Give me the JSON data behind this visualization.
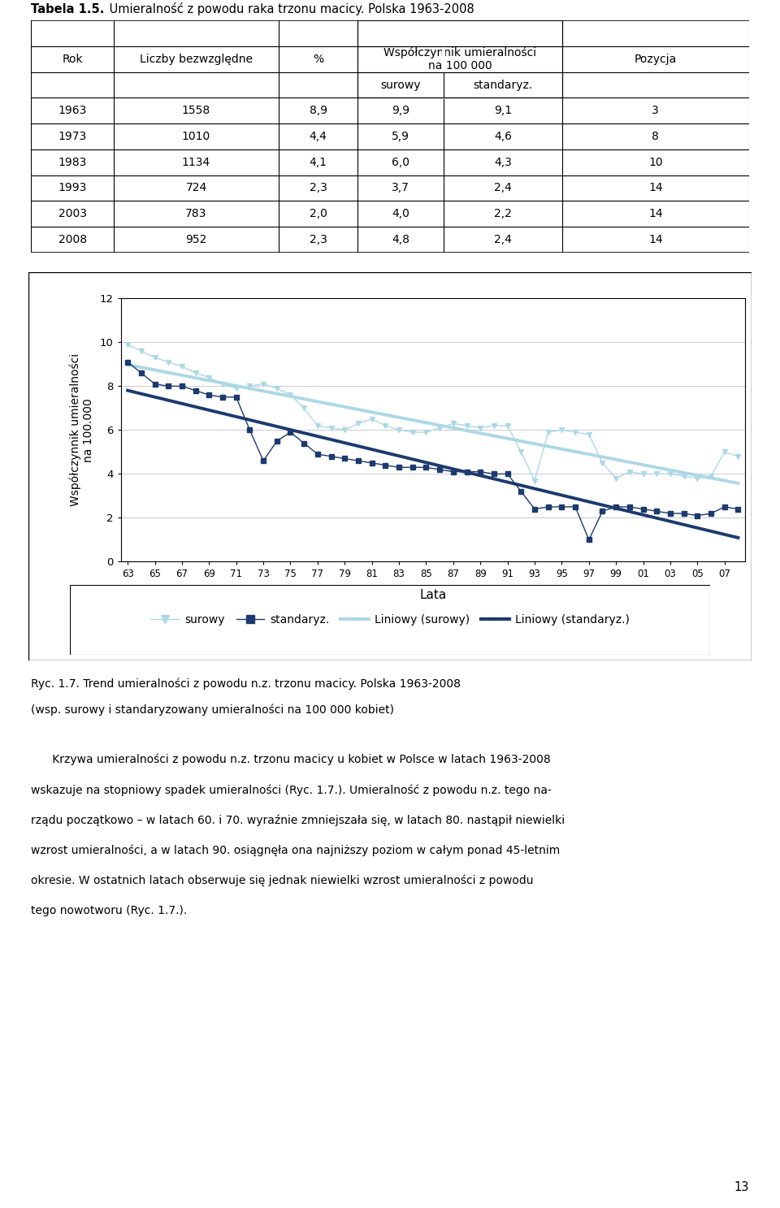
{
  "table_title_bold": "Tabela 1.5.",
  "table_title_rest": " Umieralność z powodu raka trzonu macicy. Polska 1963-2008",
  "table_data": [
    [
      "1963",
      "1558",
      "8,9",
      "9,9",
      "9,1",
      "3"
    ],
    [
      "1973",
      "1010",
      "4,4",
      "5,9",
      "4,6",
      "8"
    ],
    [
      "1983",
      "1134",
      "4,1",
      "6,0",
      "4,3",
      "10"
    ],
    [
      "1993",
      "724",
      "2,3",
      "3,7",
      "2,4",
      "14"
    ],
    [
      "2003",
      "783",
      "2,0",
      "4,0",
      "2,2",
      "14"
    ],
    [
      "2008",
      "952",
      "2,3",
      "4,8",
      "2,4",
      "14"
    ]
  ],
  "years_surowy": [
    1963,
    1964,
    1965,
    1966,
    1967,
    1968,
    1969,
    1970,
    1971,
    1972,
    1973,
    1974,
    1975,
    1976,
    1977,
    1978,
    1979,
    1980,
    1981,
    1982,
    1983,
    1984,
    1985,
    1986,
    1987,
    1988,
    1989,
    1990,
    1991,
    1992,
    1993,
    1994,
    1995,
    1996,
    1997,
    1998,
    1999,
    2000,
    2001,
    2002,
    2003,
    2004,
    2005,
    2006,
    2007,
    2008
  ],
  "surowy": [
    9.9,
    9.6,
    9.3,
    9.1,
    8.9,
    8.6,
    8.4,
    8.1,
    7.9,
    8.0,
    8.1,
    7.9,
    7.6,
    7.0,
    6.2,
    6.1,
    6.0,
    6.3,
    6.5,
    6.2,
    6.0,
    5.9,
    5.9,
    6.1,
    6.3,
    6.2,
    6.1,
    6.2,
    6.2,
    5.0,
    3.7,
    5.9,
    6.0,
    5.9,
    5.8,
    4.5,
    3.8,
    4.1,
    4.0,
    4.0,
    4.0,
    3.9,
    3.8,
    3.9,
    5.0,
    4.8
  ],
  "standaryz": [
    9.1,
    8.6,
    8.1,
    8.0,
    8.0,
    7.8,
    7.6,
    7.5,
    7.5,
    6.0,
    4.6,
    5.5,
    5.9,
    5.4,
    4.9,
    4.8,
    4.7,
    4.6,
    4.5,
    4.4,
    4.3,
    4.3,
    4.3,
    4.2,
    4.1,
    4.1,
    4.1,
    4.0,
    4.0,
    3.2,
    2.4,
    2.5,
    2.5,
    2.5,
    1.0,
    2.3,
    2.5,
    2.5,
    2.4,
    2.3,
    2.2,
    2.2,
    2.1,
    2.2,
    2.5,
    2.4
  ],
  "x_tick_labels": [
    "63",
    "65",
    "67",
    "69",
    "71",
    "73",
    "75",
    "77",
    "79",
    "81",
    "83",
    "85",
    "87",
    "89",
    "91",
    "93",
    "95",
    "97",
    "99",
    "01",
    "03",
    "05",
    "07"
  ],
  "x_tick_positions": [
    0,
    2,
    4,
    6,
    8,
    10,
    12,
    14,
    16,
    18,
    20,
    22,
    24,
    26,
    28,
    30,
    32,
    34,
    36,
    38,
    40,
    42,
    44
  ],
  "ylabel": "Współczynnik umieralności\nna 100.000",
  "xlabel": "Lata",
  "ylim": [
    0,
    12
  ],
  "yticks": [
    0,
    2,
    4,
    6,
    8,
    10,
    12
  ],
  "surowy_color": "#ADD8E6",
  "standaryz_color": "#1C3A6E",
  "caption_line1": "Ryc. 1.7. Trend umieralności z powodu n.z. trzonu macicy. Polska 1963-2008",
  "caption_line2": "(wsp. surowy i standaryzowany umieralności na 100 000 kobiet)",
  "para_lines": [
    "      Krzywa umieralności z powodu n.z. trzonu macicy u kobiet w Polsce w latach 1963-2008",
    "wskazuje na stopniowy spadek umieralności (Ryc. 1.7.). Umieralność z powodu n.z. tego na-",
    "rządu początkowo – w latach 60. i 70. wyraźnie zmniejszała się, w latach 80. nastąpił niewielki",
    "wzrost umieralności, a w latach 90. osiągnęła ona najniższy poziom w całym ponad 45-letnim",
    "okresie. W ostatnich latach obserwuje się jednak niewielki wzrost umieralności z powodu",
    "tego nowotworu (Ryc. 1.7.)."
  ],
  "page_number": "13"
}
